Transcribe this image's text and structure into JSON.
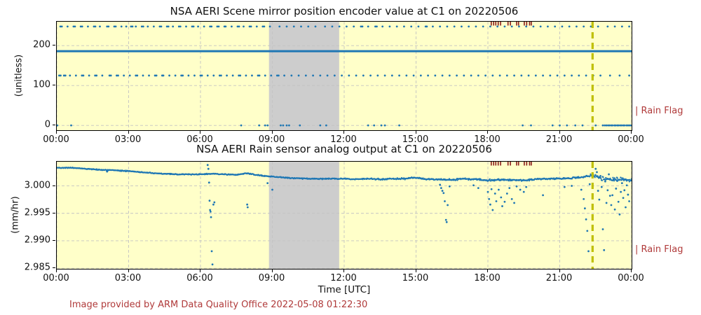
{
  "figure": {
    "background": "#ffffff",
    "plot_background": "#ffffc9",
    "shade_color": "#cdcdcd",
    "grid_color": "#c3c3c3",
    "data_blue": "#1f77b4",
    "vline_color": "#bfbf00",
    "flag_tick_color": "#8b1a1a",
    "annotation_red": "#b03a3a"
  },
  "footer": {
    "text": "Image provided by ARM Data Quality Office 2022-05-08 01:22:30"
  },
  "chart_data": [
    {
      "type": "scatter",
      "title": "NSA AERI Scene mirror position encoder value at C1 on 20220506",
      "ylabel": "(unitless)",
      "xlabel": "",
      "right_label": "| Rain Flag",
      "xlim_hours": [
        0,
        24
      ],
      "ylim": [
        -12,
        260
      ],
      "xticks": {
        "hours": [
          0,
          3,
          6,
          9,
          12,
          15,
          18,
          21,
          24
        ],
        "labels": [
          "00:00",
          "03:00",
          "06:00",
          "09:00",
          "12:00",
          "15:00",
          "18:00",
          "21:00",
          "00:00"
        ]
      },
      "yticks": [
        {
          "v": 0,
          "label": "0"
        },
        {
          "v": 100,
          "label": "100"
        },
        {
          "v": 200,
          "label": "200"
        }
      ],
      "grid": true,
      "shade_hours": [
        8.86,
        11.79
      ],
      "vline_hour": 22.37,
      "hline_value": 186,
      "rain_flag_hours": [
        18.14,
        18.24,
        18.33,
        18.43,
        18.53,
        18.84,
        18.94,
        19.2,
        19.28,
        19.52,
        19.62,
        19.74,
        19.81
      ],
      "bands": [
        {
          "value": 248,
          "hours": [
            0.15,
            0.21,
            0.45,
            0.7,
            0.76,
            1.0,
            1.06,
            1.3,
            1.55,
            1.61,
            1.8,
            2.1,
            2.16,
            2.4,
            2.46,
            2.7,
            2.9,
            3.1,
            3.16,
            3.3,
            3.55,
            3.61,
            3.8,
            4.05,
            4.3,
            4.36,
            4.6,
            4.66,
            4.85,
            5.1,
            5.16,
            5.4,
            5.65,
            5.71,
            5.9,
            6.15,
            6.4,
            6.46,
            6.7,
            6.76,
            7.0,
            7.05,
            7.3,
            7.55,
            7.61,
            7.8,
            8.05,
            8.11,
            8.35,
            8.6,
            8.66,
            8.9,
            9.3,
            9.6,
            9.9,
            10.2,
            10.5,
            10.8,
            11.2,
            11.5,
            11.8,
            12.1,
            12.4,
            12.7,
            12.76,
            13.0,
            13.3,
            13.36,
            13.6,
            13.9,
            14.2,
            14.5,
            14.8,
            15.1,
            15.4,
            15.45,
            15.7,
            16.0,
            16.3,
            16.6,
            16.9,
            17.2,
            17.5,
            17.8,
            18.1,
            18.4,
            18.7,
            19.0,
            19.3,
            19.6,
            19.9,
            20.2,
            20.5,
            20.8,
            21.1,
            21.4,
            21.7,
            22.0,
            22.3,
            22.6,
            23.0,
            23.3,
            23.6,
            23.9
          ]
        },
        {
          "value": 125,
          "hours": [
            0.1,
            0.16,
            0.3,
            0.36,
            0.55,
            0.8,
            1.05,
            1.11,
            1.35,
            1.6,
            1.66,
            1.9,
            2.2,
            2.26,
            2.5,
            2.56,
            2.8,
            3.05,
            3.3,
            3.36,
            3.6,
            3.85,
            4.1,
            4.16,
            4.4,
            4.45,
            4.7,
            4.95,
            5.2,
            5.26,
            5.5,
            5.75,
            6.0,
            6.06,
            6.3,
            6.55,
            6.8,
            6.86,
            7.1,
            7.35,
            7.6,
            7.66,
            7.9,
            8.15,
            8.4,
            8.46,
            8.7,
            8.95,
            9.2,
            9.26,
            9.5,
            9.8,
            10.1,
            10.4,
            10.7,
            11.0,
            11.3,
            11.6,
            11.9,
            12.2,
            12.5,
            12.8,
            13.1,
            13.4,
            13.7,
            14.0,
            14.3,
            14.6,
            14.9,
            15.2,
            15.5,
            15.8,
            16.1,
            16.4,
            16.7,
            17.0,
            17.3,
            17.6,
            17.9,
            18.2,
            18.5,
            18.8,
            19.1,
            19.4,
            19.7,
            20.0,
            20.3,
            20.6,
            20.9,
            21.2,
            21.5,
            21.8,
            22.1,
            22.4,
            22.7,
            23.1,
            23.5,
            23.9
          ]
        },
        {
          "value": 0,
          "hours": [
            0.02,
            0.6,
            7.7,
            8.45,
            8.7,
            8.8,
            9.35,
            9.45,
            9.6,
            9.7,
            10.15,
            11.0,
            11.25,
            13.0,
            13.25,
            13.55,
            13.7,
            14.3,
            19.45,
            19.8,
            20.7,
            21.0,
            21.3,
            21.65,
            21.95,
            22.5,
            22.8,
            22.88,
            22.95,
            23.02,
            23.08,
            23.15,
            23.2,
            23.28,
            23.33,
            23.4,
            23.45,
            23.52,
            23.58,
            23.65,
            23.7,
            23.78,
            23.84,
            23.9,
            23.96
          ]
        }
      ]
    },
    {
      "type": "scatter",
      "title": "NSA AERI Rain sensor analog output at C1 on 20220506",
      "ylabel": "(mm/hr)",
      "xlabel": "Time [UTC]",
      "right_label": "| Rain Flag",
      "xlim_hours": [
        0,
        24
      ],
      "ylim": [
        2.9849,
        3.0044
      ],
      "xticks": {
        "hours": [
          0,
          3,
          6,
          9,
          12,
          15,
          18,
          21,
          24
        ],
        "labels": [
          "00:00",
          "03:00",
          "06:00",
          "09:00",
          "12:00",
          "15:00",
          "18:00",
          "21:00",
          "00:00"
        ]
      },
      "yticks": [
        {
          "v": 2.985,
          "label": "2.985"
        },
        {
          "v": 2.99,
          "label": "2.990"
        },
        {
          "v": 2.995,
          "label": "2.995"
        },
        {
          "v": 3.0,
          "label": "3.000"
        }
      ],
      "grid": true,
      "shade_hours": [
        8.86,
        11.79
      ],
      "vline_hour": 22.37,
      "rain_flag_hours": [
        18.14,
        18.24,
        18.33,
        18.43,
        18.53,
        18.84,
        18.94,
        19.2,
        19.28,
        19.52,
        19.62,
        19.74,
        19.81
      ],
      "trace_keypoints": [
        [
          0,
          3.0033
        ],
        [
          0.5,
          3.0033
        ],
        [
          1,
          3.0032
        ],
        [
          1.5,
          3.003
        ],
        [
          2,
          3.0029
        ],
        [
          2.5,
          3.0028
        ],
        [
          3,
          3.0027
        ],
        [
          3.5,
          3.0025
        ],
        [
          4,
          3.0023
        ],
        [
          4.5,
          3.0022
        ],
        [
          5,
          3.0021
        ],
        [
          5.5,
          3.0021
        ],
        [
          6,
          3.0021
        ],
        [
          6.5,
          3.0022
        ],
        [
          7,
          3.0021
        ],
        [
          7.5,
          3.002
        ],
        [
          7.9,
          3.0023
        ],
        [
          8.3,
          3.002
        ],
        [
          8.7,
          3.0018
        ],
        [
          9,
          3.0017
        ],
        [
          9.5,
          3.0015
        ],
        [
          10,
          3.0014
        ],
        [
          10.5,
          3.0013
        ],
        [
          11,
          3.0013
        ],
        [
          11.5,
          3.0013
        ],
        [
          12,
          3.0013
        ],
        [
          12.5,
          3.0012
        ],
        [
          13,
          3.0013
        ],
        [
          13.5,
          3.0012
        ],
        [
          14,
          3.0013
        ],
        [
          14.5,
          3.0013
        ],
        [
          14.9,
          3.0015
        ],
        [
          15.3,
          3.0013
        ],
        [
          15.7,
          3.0012
        ],
        [
          16.1,
          3.0011
        ],
        [
          16.5,
          3.0011
        ],
        [
          17,
          3.0013
        ],
        [
          17.5,
          3.0012
        ],
        [
          18,
          3.001
        ],
        [
          18.5,
          3.0011
        ],
        [
          19,
          3.0011
        ],
        [
          19.5,
          3.001
        ],
        [
          20,
          3.0012
        ],
        [
          20.5,
          3.0013
        ],
        [
          21,
          3.0013
        ],
        [
          21.5,
          3.0014
        ],
        [
          22,
          3.0016
        ],
        [
          22.3,
          3.0019
        ],
        [
          22.6,
          3.0016
        ],
        [
          23,
          3.0012
        ],
        [
          23.5,
          3.0012
        ],
        [
          24,
          3.001
        ]
      ],
      "noise_profile": [
        [
          0,
          0.00012
        ],
        [
          9,
          0.00012
        ],
        [
          12,
          0.00015
        ],
        [
          16,
          0.0002
        ],
        [
          18,
          0.00025
        ],
        [
          21,
          0.0002
        ],
        [
          22.3,
          0.0003
        ],
        [
          22.5,
          0.0006
        ],
        [
          24,
          0.0005
        ]
      ],
      "outliers": [
        [
          2.1,
          3.0026
        ],
        [
          6.3,
          3.0038
        ],
        [
          6.33,
          3.0031
        ],
        [
          6.36,
          3.0006
        ],
        [
          6.38,
          2.9973
        ],
        [
          6.4,
          2.9956
        ],
        [
          6.42,
          2.9953
        ],
        [
          6.44,
          2.9943
        ],
        [
          6.47,
          2.9881
        ],
        [
          6.5,
          2.9857
        ],
        [
          6.54,
          2.9966
        ],
        [
          6.58,
          2.997
        ],
        [
          7.95,
          2.9966
        ],
        [
          7.97,
          2.9961
        ],
        [
          8.8,
          3.0005
        ],
        [
          9.0,
          2.9993
        ],
        [
          16.0,
          3.0002
        ],
        [
          16.05,
          2.9996
        ],
        [
          16.1,
          2.9991
        ],
        [
          16.15,
          2.9987
        ],
        [
          16.2,
          2.9972
        ],
        [
          16.25,
          2.9938
        ],
        [
          16.28,
          2.9934
        ],
        [
          16.32,
          2.9965
        ],
        [
          16.4,
          2.9999
        ],
        [
          17.4,
          3.0001
        ],
        [
          17.6,
          2.9996
        ],
        [
          18.0,
          2.9989
        ],
        [
          18.05,
          2.9976
        ],
        [
          18.1,
          2.9966
        ],
        [
          18.15,
          2.9994
        ],
        [
          18.2,
          2.9956
        ],
        [
          18.3,
          2.9986
        ],
        [
          18.35,
          2.9972
        ],
        [
          18.45,
          2.9993
        ],
        [
          18.55,
          2.9979
        ],
        [
          18.6,
          2.9963
        ],
        [
          18.7,
          2.9971
        ],
        [
          18.8,
          2.9986
        ],
        [
          18.9,
          2.9996
        ],
        [
          19.0,
          2.9976
        ],
        [
          19.1,
          2.9969
        ],
        [
          19.2,
          2.9999
        ],
        [
          19.35,
          2.9993
        ],
        [
          19.5,
          2.9989
        ],
        [
          19.6,
          2.9998
        ],
        [
          20.3,
          2.9983
        ],
        [
          21.2,
          2.9998
        ],
        [
          21.5,
          3.0
        ],
        [
          21.9,
          2.9993
        ],
        [
          22.0,
          2.9976
        ],
        [
          22.05,
          2.9959
        ],
        [
          22.1,
          2.9939
        ],
        [
          22.15,
          2.9918
        ],
        [
          22.2,
          2.9881
        ],
        [
          22.25,
          3.0003
        ],
        [
          22.5,
          3.0031
        ],
        [
          22.55,
          3.0025
        ],
        [
          22.6,
          2.9991
        ],
        [
          22.65,
          2.9975
        ],
        [
          22.7,
          3.0018
        ],
        [
          22.75,
          2.9998
        ],
        [
          22.8,
          2.9921
        ],
        [
          22.85,
          2.9883
        ],
        [
          22.9,
          3.0008
        ],
        [
          22.95,
          2.9969
        ],
        [
          23.0,
          2.9992
        ],
        [
          23.05,
          3.0021
        ],
        [
          23.1,
          2.9982
        ],
        [
          23.15,
          2.9965
        ],
        [
          23.2,
          2.9983
        ],
        [
          23.25,
          3.0012
        ],
        [
          23.3,
          2.9957
        ],
        [
          23.35,
          2.9995
        ],
        [
          23.4,
          3.0009
        ],
        [
          23.45,
          2.9971
        ],
        [
          23.5,
          2.9948
        ],
        [
          23.55,
          2.9989
        ],
        [
          23.6,
          3.0005
        ],
        [
          23.65,
          2.9978
        ],
        [
          23.7,
          2.9992
        ],
        [
          23.75,
          2.9961
        ],
        [
          23.8,
          3.0001
        ],
        [
          23.85,
          2.9984
        ],
        [
          23.9,
          2.9972
        ]
      ]
    }
  ]
}
